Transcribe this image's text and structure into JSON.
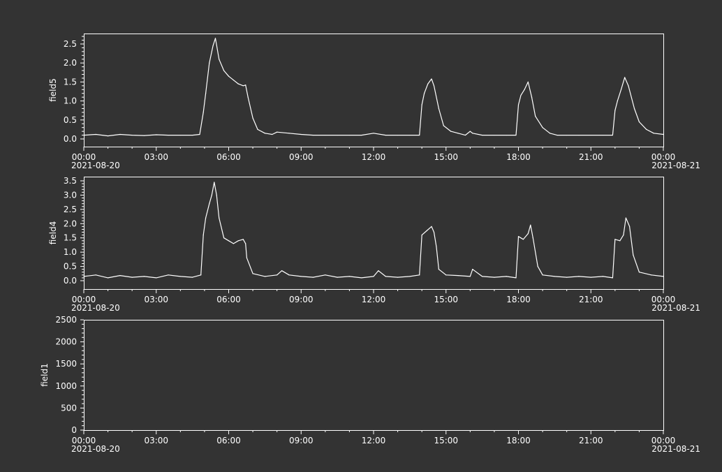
{
  "colors": {
    "background": "#333333",
    "foreground": "#ffffff",
    "line": "#ffffff"
  },
  "x_axis": {
    "tick_labels": [
      "00:00",
      "03:00",
      "06:00",
      "09:00",
      "12:00",
      "15:00",
      "18:00",
      "21:00",
      "00:00"
    ],
    "start_date_label": "2021-08-20",
    "end_date_label": "2021-08-21",
    "range_hours": [
      0,
      24
    ]
  },
  "chart_data": [
    {
      "type": "line",
      "ylabel": "field5",
      "ylim": [
        -0.1,
        2.75
      ],
      "y_ticks": [
        "0.0",
        "0.5",
        "1.0",
        "1.5",
        "2.0",
        "2.5"
      ],
      "grid": false,
      "series": [
        {
          "x": [
            0,
            0.5,
            1,
            1.5,
            2,
            2.5,
            3,
            3.5,
            4,
            4.5,
            4.8,
            4.95,
            5.05,
            5.2,
            5.35,
            5.45,
            5.6,
            5.8,
            6.0,
            6.2,
            6.4,
            6.6,
            6.7,
            6.8,
            7.0,
            7.2,
            7.5,
            7.8,
            8.0,
            8.5,
            9,
            9.5,
            10,
            10.5,
            11,
            11.5,
            12,
            12.5,
            13,
            13.5,
            13.9,
            14.0,
            14.1,
            14.25,
            14.4,
            14.5,
            14.7,
            14.9,
            15.2,
            15.5,
            15.8,
            16.0,
            16.1,
            16.5,
            17,
            17.5,
            17.9,
            18.0,
            18.1,
            18.25,
            18.4,
            18.55,
            18.7,
            19.0,
            19.3,
            19.6,
            20,
            20.5,
            21,
            21.5,
            21.9,
            22.0,
            22.1,
            22.25,
            22.4,
            22.55,
            22.8,
            23.0,
            23.3,
            23.6,
            24
          ],
          "y": [
            0.1,
            0.12,
            0.08,
            0.12,
            0.1,
            0.09,
            0.11,
            0.1,
            0.1,
            0.1,
            0.12,
            0.7,
            1.2,
            2.0,
            2.45,
            2.65,
            2.1,
            1.8,
            1.65,
            1.55,
            1.45,
            1.4,
            1.42,
            1.1,
            0.55,
            0.25,
            0.15,
            0.12,
            0.18,
            0.15,
            0.12,
            0.1,
            0.1,
            0.1,
            0.1,
            0.1,
            0.15,
            0.1,
            0.1,
            0.1,
            0.1,
            0.9,
            1.2,
            1.45,
            1.58,
            1.4,
            0.8,
            0.35,
            0.2,
            0.15,
            0.1,
            0.2,
            0.15,
            0.1,
            0.1,
            0.1,
            0.1,
            0.9,
            1.15,
            1.3,
            1.5,
            1.1,
            0.6,
            0.3,
            0.15,
            0.1,
            0.1,
            0.1,
            0.1,
            0.1,
            0.1,
            0.75,
            1.0,
            1.3,
            1.62,
            1.4,
            0.8,
            0.45,
            0.25,
            0.15,
            0.12
          ]
        }
      ]
    },
    {
      "type": "line",
      "ylabel": "field4",
      "ylim": [
        -0.2,
        3.6
      ],
      "y_ticks": [
        "0.0",
        "0.5",
        "1.0",
        "1.5",
        "2.0",
        "2.5",
        "3.0",
        "3.5"
      ],
      "grid": false,
      "series": [
        {
          "x": [
            0,
            0.5,
            1,
            1.5,
            2,
            2.5,
            3,
            3.5,
            4,
            4.5,
            4.85,
            4.95,
            5.05,
            5.2,
            5.3,
            5.4,
            5.5,
            5.6,
            5.8,
            6.0,
            6.2,
            6.4,
            6.6,
            6.7,
            6.75,
            7.0,
            7.5,
            8.0,
            8.2,
            8.5,
            9,
            9.5,
            10,
            10.5,
            11,
            11.5,
            12,
            12.2,
            12.5,
            13,
            13.5,
            13.9,
            14.0,
            14.2,
            14.4,
            14.5,
            14.6,
            14.7,
            15.0,
            15.5,
            16.0,
            16.1,
            16.5,
            17,
            17.5,
            17.9,
            18.0,
            18.2,
            18.4,
            18.5,
            18.6,
            18.8,
            19.0,
            19.5,
            20,
            20.5,
            21,
            21.5,
            21.9,
            22.0,
            22.2,
            22.35,
            22.45,
            22.6,
            22.75,
            23.0,
            23.5,
            24
          ],
          "y": [
            0.15,
            0.2,
            0.1,
            0.18,
            0.12,
            0.15,
            0.1,
            0.2,
            0.15,
            0.12,
            0.2,
            1.6,
            2.2,
            2.7,
            3.0,
            3.45,
            3.0,
            2.2,
            1.5,
            1.4,
            1.3,
            1.4,
            1.45,
            1.3,
            0.8,
            0.25,
            0.15,
            0.2,
            0.35,
            0.2,
            0.15,
            0.12,
            0.2,
            0.12,
            0.15,
            0.1,
            0.15,
            0.35,
            0.15,
            0.12,
            0.15,
            0.2,
            1.6,
            1.75,
            1.9,
            1.7,
            1.2,
            0.4,
            0.2,
            0.18,
            0.15,
            0.4,
            0.15,
            0.12,
            0.15,
            0.1,
            1.55,
            1.45,
            1.65,
            1.95,
            1.5,
            0.5,
            0.2,
            0.15,
            0.12,
            0.15,
            0.12,
            0.15,
            0.1,
            1.45,
            1.4,
            1.6,
            2.2,
            1.9,
            0.9,
            0.3,
            0.2,
            0.15
          ]
        }
      ]
    },
    {
      "type": "line",
      "ylabel": "field1",
      "ylim": [
        0,
        2500
      ],
      "y_ticks": [
        "0",
        "500",
        "1000",
        "1500",
        "2000",
        "2500"
      ],
      "grid": false,
      "series": []
    }
  ]
}
